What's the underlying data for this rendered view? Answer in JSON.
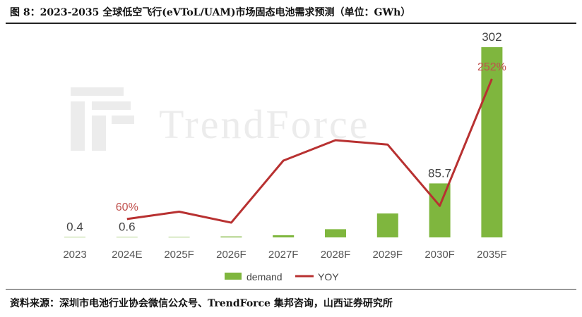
{
  "header": {
    "title": "图 8：2023-2035 全球低空飞行(eVToL/UAM)市场固态电池需求预测（单位：GWh）"
  },
  "footer": {
    "source": "资料来源：深圳市电池行业协会微信公众号、TrendForce 集邦咨询，山西证券研究所"
  },
  "watermark": {
    "text": "TrendForce"
  },
  "colors": {
    "bar": "#7fb63e",
    "line": "#b83131",
    "yoy_label": "#c0504d"
  },
  "chart_data": {
    "type": "bar",
    "categories": [
      "2023",
      "2024E",
      "2025F",
      "2026F",
      "2027F",
      "2028F",
      "2029F",
      "2030F",
      "2035F"
    ],
    "series": [
      {
        "name": "demand",
        "type": "bar",
        "values": [
          0.4,
          0.6,
          0.8,
          1.5,
          3.5,
          13,
          38,
          85.7,
          302
        ]
      },
      {
        "name": "YOY",
        "type": "line",
        "values": [
          null,
          60,
          70,
          55,
          140,
          168,
          162,
          78,
          252
        ]
      }
    ],
    "data_labels": [
      {
        "category": "2023",
        "series": "demand",
        "text": "0.4"
      },
      {
        "category": "2024E",
        "series": "demand",
        "text": "0.6"
      },
      {
        "category": "2030F",
        "series": "demand",
        "text": "85.7"
      },
      {
        "category": "2035F",
        "series": "demand",
        "text": "302"
      },
      {
        "category": "2024E",
        "series": "YOY",
        "text": "60%"
      },
      {
        "category": "2035F",
        "series": "YOY",
        "text": "252%"
      }
    ],
    "legend": {
      "position": "bottom-center",
      "entries": [
        "demand",
        "YOY"
      ]
    },
    "ylim_bar": [
      0,
      302
    ],
    "ylim_line": [
      0,
      252
    ],
    "grid": false
  }
}
